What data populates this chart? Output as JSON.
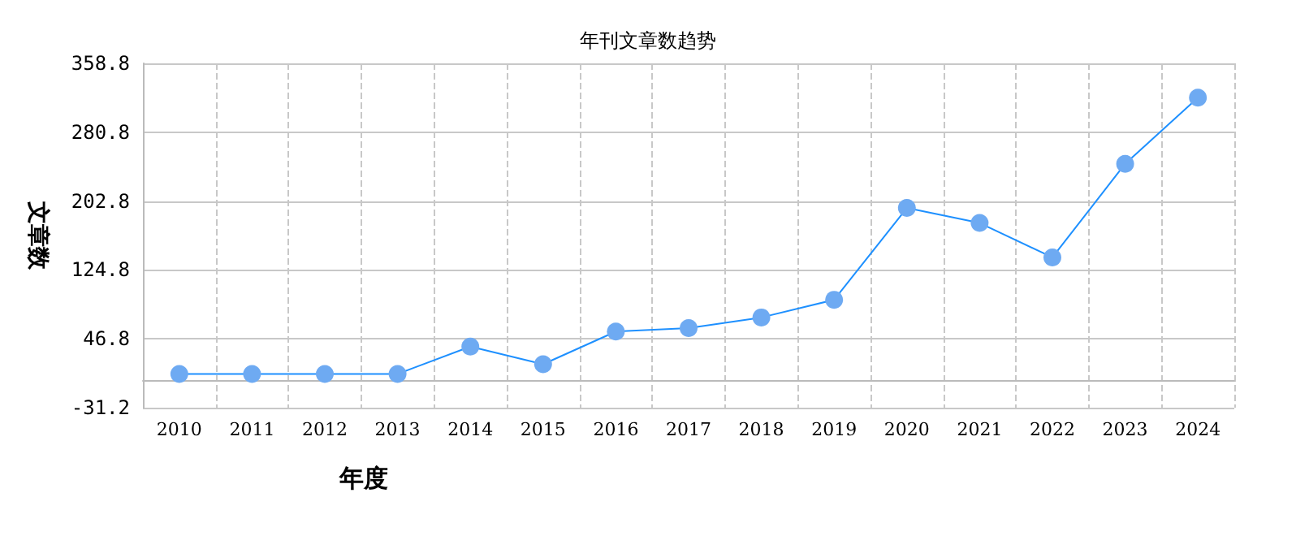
{
  "chart_data": {
    "type": "line",
    "title": "年刊文章数趋势",
    "xlabel": "年度",
    "ylabel": "文章数",
    "categories": [
      "2010",
      "2011",
      "2012",
      "2013",
      "2014",
      "2015",
      "2016",
      "2017",
      "2018",
      "2019",
      "2020",
      "2021",
      "2022",
      "2023",
      "2024"
    ],
    "series": [
      {
        "color": "#1e90ff",
        "values": [
          7,
          7,
          7,
          7,
          38,
          18,
          55,
          59,
          71,
          91,
          195,
          178,
          139,
          245,
          320
        ]
      }
    ],
    "ylim": [
      -31.2,
      358.8
    ],
    "yticks": [
      -31.2,
      46.8,
      124.8,
      202.8,
      280.8,
      358.8
    ],
    "grid": true,
    "marker": "circle",
    "line_style": "solid"
  }
}
